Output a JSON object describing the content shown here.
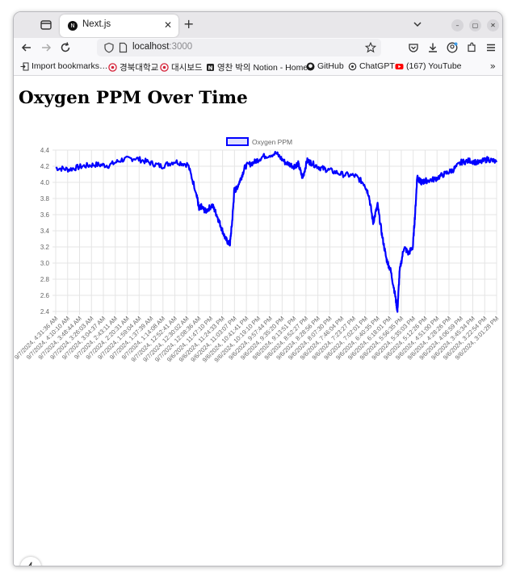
{
  "browser": {
    "tab_title": "Next.js",
    "tab_close": "✕",
    "new_tab": "+",
    "url_host": "localhost",
    "url_port": ":3000",
    "bookmarks": [
      {
        "label": "Import bookmarks…",
        "icon": "import-icon"
      },
      {
        "label": "경북대학교",
        "icon": "knu-icon"
      },
      {
        "label": "대시보드",
        "icon": "knu-icon"
      },
      {
        "label": "영찬 박의 Notion - Home",
        "icon": "notion-icon"
      },
      {
        "label": "GitHub",
        "icon": "github-icon"
      },
      {
        "label": "ChatGPT",
        "icon": "chatgpt-icon"
      },
      {
        "label": "(167) YouTube",
        "icon": "youtube-icon"
      }
    ]
  },
  "page": {
    "title": "Oxygen PPM Over Time"
  },
  "chart_data": {
    "type": "line",
    "series": [
      {
        "name": "Oxygen PPM",
        "color": "#0000ff",
        "x_fraction": [
          0.0,
          0.03,
          0.06,
          0.09,
          0.12,
          0.15,
          0.18,
          0.21,
          0.24,
          0.27,
          0.3,
          0.32,
          0.325,
          0.33,
          0.34,
          0.355,
          0.365,
          0.375,
          0.385,
          0.395,
          0.4,
          0.405,
          0.41,
          0.42,
          0.43,
          0.45,
          0.47,
          0.5,
          0.52,
          0.54,
          0.55,
          0.56,
          0.57,
          0.58,
          0.6,
          0.62,
          0.65,
          0.68,
          0.7,
          0.71,
          0.72,
          0.73,
          0.74,
          0.75,
          0.76,
          0.77,
          0.775,
          0.78,
          0.79,
          0.8,
          0.81,
          0.815,
          0.82,
          0.825,
          0.83,
          0.84,
          0.86,
          0.88,
          0.9,
          0.92,
          0.94,
          0.96,
          0.98,
          1.0
        ],
        "values": [
          4.18,
          4.16,
          4.2,
          4.22,
          4.21,
          4.28,
          4.3,
          4.25,
          4.2,
          4.26,
          4.22,
          3.85,
          3.66,
          3.7,
          3.64,
          3.72,
          3.6,
          3.45,
          3.3,
          3.23,
          3.5,
          3.9,
          3.92,
          4.05,
          4.2,
          4.25,
          4.32,
          4.36,
          4.25,
          4.2,
          4.23,
          4.05,
          4.27,
          4.24,
          4.18,
          4.15,
          4.1,
          4.08,
          3.98,
          3.85,
          3.5,
          3.72,
          3.35,
          3.05,
          2.9,
          2.6,
          2.4,
          2.9,
          3.2,
          3.12,
          3.2,
          3.6,
          4.08,
          4.02,
          4.0,
          4.02,
          4.04,
          4.1,
          4.15,
          4.25,
          4.27,
          4.24,
          4.29,
          4.25
        ]
      }
    ],
    "ylim": [
      2.4,
      4.4
    ],
    "y_ticks": [
      "4.4",
      "4.2",
      "4.0",
      "3.8",
      "3.6",
      "3.4",
      "3.2",
      "3.0",
      "2.8",
      "2.6",
      "2.4"
    ],
    "x_tick_labels": [
      "9/7/2024, 4:31:36 AM",
      "9/7/2024, 4:10:10 AM",
      "9/7/2024, 3:48:44 AM",
      "9/7/2024, 3:26:03 AM",
      "9/7/2024, 3:04:37 AM",
      "9/7/2024, 2:43:11 AM",
      "9/7/2024, 2:20:31 AM",
      "9/7/2024, 1:59:04 AM",
      "9/7/2024, 1:37:39 AM",
      "9/7/2024, 1:14:08 AM",
      "9/7/2024, 12:52:41 AM",
      "9/7/2024, 12:30:02 AM",
      "9/7/2024, 12:08:36 AM",
      "9/6/2024, 11:47:10 PM",
      "9/6/2024, 11:24:33 PM",
      "9/6/2024, 11:03:07 PM",
      "9/6/2024, 10:41:41 PM",
      "9/6/2024, 10:19:10 PM",
      "9/6/2024, 9:57:44 PM",
      "9/6/2024, 9:35:20 PM",
      "9/6/2024, 9:13:51 PM",
      "9/6/2024, 8:52:27 PM",
      "9/6/2024, 8:28:56 PM",
      "9/6/2024, 8:07:30 PM",
      "9/6/2024, 7:46:04 PM",
      "9/6/2024, 7:23:27 PM",
      "9/6/2024, 7:02:01 PM",
      "9/6/2024, 6:40:35 PM",
      "9/6/2024, 6:18:01 PM",
      "9/6/2024, 5:56:35 PM",
      "9/6/2024, 5:35:03 PM",
      "9/6/2024, 5:12:26 PM",
      "9/6/2024, 4:51:00 PM",
      "9/6/2024, 4:28:26 PM",
      "9/6/2024, 4:06:59 PM",
      "9/6/2024, 3:45:34 PM",
      "9/6/2024, 3:22:54 PM",
      "9/6/2024, 3:01:28 PM"
    ],
    "legend_position": "top-center",
    "grid": true
  }
}
